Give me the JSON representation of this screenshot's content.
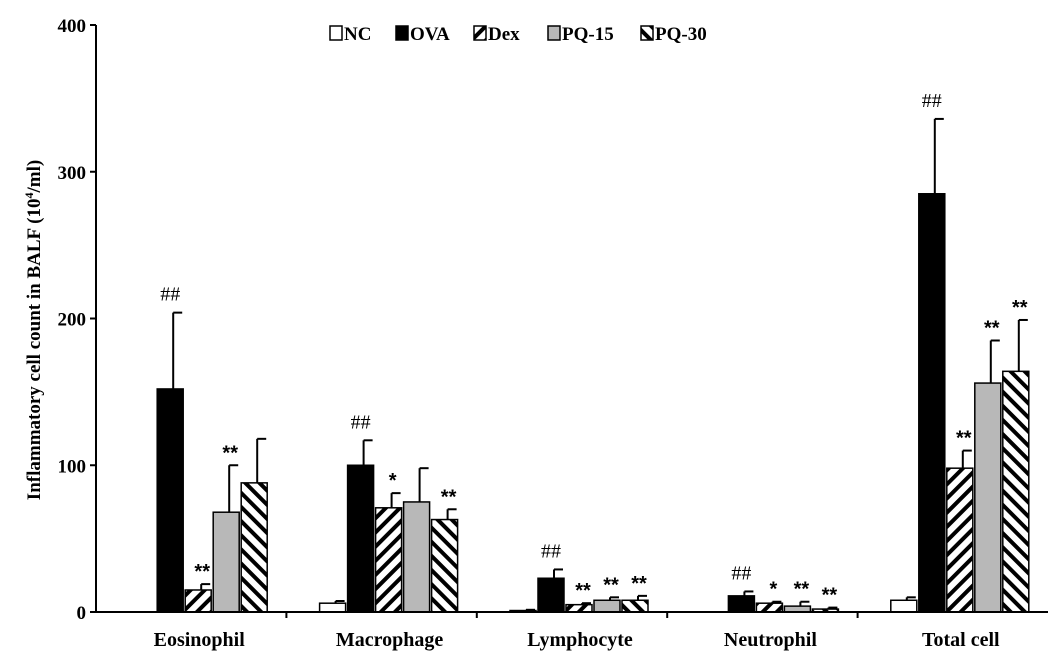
{
  "chart_data": {
    "type": "bar",
    "title": "",
    "xlabel": "",
    "ylabel": "Inflammatory cell count in BALF (10",
    "ylabel_sup": "4",
    "ylabel_unit": "/ml)",
    "ylim": [
      0,
      400
    ],
    "yticks": [
      "0",
      "100",
      "200",
      "300",
      "400"
    ],
    "grid": false,
    "legend_position": "top-center",
    "categories": [
      "Eosinophil",
      "Macrophage",
      "Lymphocyte",
      "Neutrophil",
      "Total cell"
    ],
    "series": [
      {
        "name": "NC",
        "fill": "white",
        "values": [
          0,
          6,
          1,
          0,
          8
        ],
        "errors": [
          0,
          1.5,
          0.5,
          0,
          2
        ],
        "annotations": [
          "",
          "",
          "",
          "",
          ""
        ]
      },
      {
        "name": "OVA",
        "fill": "black",
        "values": [
          152,
          100,
          23,
          11,
          285
        ],
        "errors": [
          52,
          17,
          6,
          3,
          51
        ],
        "annotations": [
          "##",
          "##",
          "##",
          "##",
          "##"
        ]
      },
      {
        "name": "Dex",
        "fill": "backslash",
        "values": [
          15,
          71,
          5,
          6,
          98
        ],
        "errors": [
          4,
          10,
          1,
          1,
          12
        ],
        "annotations": [
          "**",
          "*",
          "**",
          "*",
          "**"
        ]
      },
      {
        "name": "PQ-15",
        "fill": "gray",
        "values": [
          68,
          75,
          8,
          4,
          156
        ],
        "errors": [
          32,
          23,
          2,
          3,
          29
        ],
        "annotations": [
          "**",
          "",
          "**",
          "**",
          "**"
        ]
      },
      {
        "name": "PQ-30",
        "fill": "slash",
        "values": [
          88,
          63,
          8,
          2,
          164
        ],
        "errors": [
          30,
          7,
          3,
          1,
          35
        ],
        "annotations": [
          "",
          "**",
          "**",
          "**",
          "**"
        ]
      }
    ]
  }
}
